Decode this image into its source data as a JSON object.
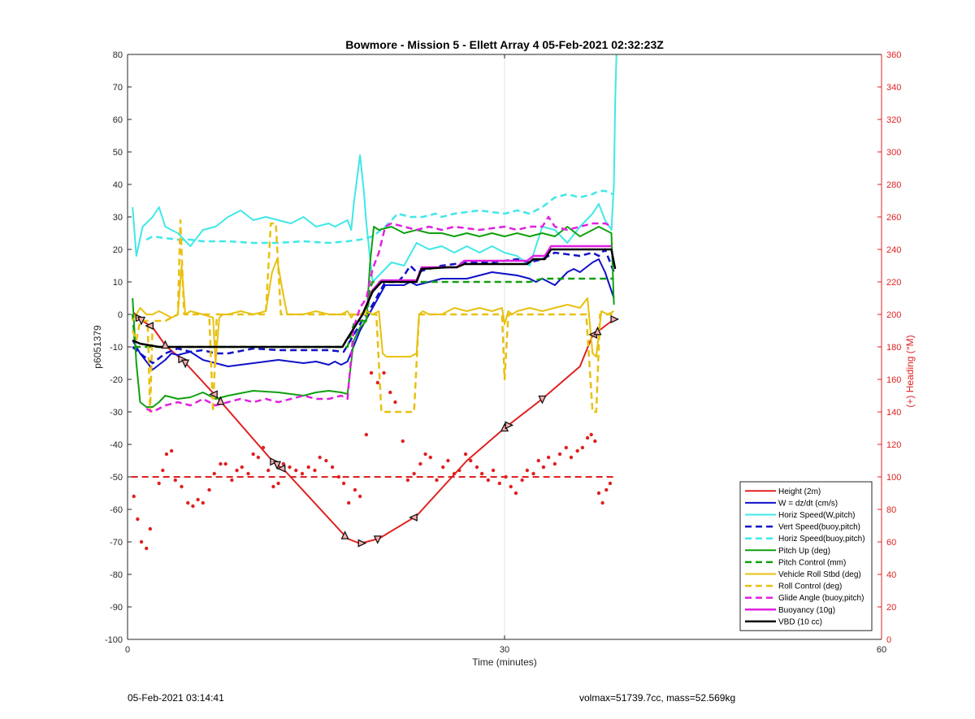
{
  "chart_data": {
    "type": "line",
    "title": "Bowmore - Mission 5 - Ellett Array 4 05-Feb-2021 02:32:23Z",
    "xlabel": "Time (minutes)",
    "ylabel": "p6051379",
    "y2label": "(+) Heading (°M)",
    "xlim": [
      0,
      60
    ],
    "ylim": [
      -100,
      80
    ],
    "y2lim": [
      0,
      360
    ],
    "xticks": [
      0,
      30,
      60
    ],
    "yticks": [
      -100,
      -90,
      -80,
      -70,
      -60,
      -50,
      -40,
      -30,
      -20,
      -10,
      0,
      10,
      20,
      30,
      40,
      50,
      60,
      70,
      80
    ],
    "y2ticks": [
      0,
      20,
      40,
      60,
      80,
      100,
      120,
      140,
      160,
      180,
      200,
      220,
      240,
      260,
      280,
      300,
      320,
      340,
      360
    ],
    "grid": "x-at-30-only",
    "legend_location": "bottom-right",
    "colors": {
      "red": "#e02020",
      "blue": "#1010c8",
      "cyan": "#40e8e8",
      "green": "#10a010",
      "yellow": "#e8c010",
      "magenta": "#e020e0",
      "black": "#000000",
      "heading": "#e02020"
    },
    "series": [
      {
        "name": "Height (2m)",
        "color": "red",
        "style": "solid",
        "width": 2,
        "markers": true,
        "x": [
          0.5,
          1.0,
          2.0,
          3.0,
          4.5,
          7.0,
          11.5,
          12.5,
          17.5,
          18.5,
          20.0,
          23.0,
          27.0,
          30.0,
          33.0,
          36.0,
          37.0,
          38.7
        ],
        "y": [
          0.5,
          -1.5,
          -4,
          -9.5,
          -14.5,
          -25,
          -45,
          -48,
          -69,
          -70.5,
          -69,
          -62,
          -45,
          -35,
          -26,
          -16,
          -6.5,
          -1.5
        ],
        "marker_x": [
          0.9,
          1.1,
          1.8,
          3.0,
          4.3,
          4.6,
          6.9,
          7.4,
          11.6,
          11.9,
          12.3,
          17.3,
          18.6,
          19.9,
          22.8,
          30.0,
          30.3,
          33.0,
          37.1,
          37.4,
          38.7
        ]
      },
      {
        "name": "W = dz/dt (cm/s)",
        "color": "blue",
        "style": "solid",
        "width": 2,
        "x": [
          0.4,
          1.0,
          2.0,
          3.0,
          3.5,
          4.0,
          5,
          6,
          8,
          10,
          12,
          14,
          15,
          16,
          16.5,
          17,
          17.5,
          18.5,
          19.5,
          20.5,
          22,
          22.5,
          23,
          25,
          27,
          28,
          29,
          31,
          32,
          32.5,
          33,
          34,
          35,
          35.5,
          36,
          37,
          37.5,
          38,
          38.7
        ],
        "y": [
          -8,
          -12,
          -17,
          -14,
          -12,
          -12.5,
          -11.5,
          -14,
          -16,
          -15,
          -14,
          -15,
          -14.5,
          -15.5,
          -14.5,
          -15.5,
          -14.5,
          -5,
          2,
          9,
          9,
          10,
          9,
          11,
          11,
          12,
          13,
          12,
          11,
          10,
          11,
          9,
          13,
          14,
          13,
          16,
          17,
          13,
          5
        ]
      },
      {
        "name": "Horiz Speed(W,pitch)",
        "color": "cyan",
        "style": "solid",
        "width": 2,
        "x": [
          0.4,
          0.7,
          1.2,
          2.0,
          2.5,
          3.0,
          3.5,
          4.0,
          4.5,
          5.0,
          6,
          7,
          8,
          9,
          10,
          11,
          12,
          13,
          14,
          15,
          16,
          16.5,
          17,
          17.5,
          17.8,
          18.0,
          18.5,
          18.8,
          19.0,
          19.5,
          20,
          21,
          22,
          23,
          24,
          25,
          26,
          27,
          28,
          29,
          30,
          31,
          32,
          33,
          34,
          35,
          36,
          37,
          37.5,
          38.0,
          38.5,
          38.7,
          38.8,
          38.9
        ],
        "y": [
          33,
          18,
          27,
          30,
          33,
          27,
          26,
          25,
          23,
          21,
          26,
          27,
          30,
          32,
          29,
          30,
          29,
          28,
          30,
          27,
          28,
          27,
          28,
          29,
          26,
          34,
          49,
          38,
          28,
          10,
          12,
          16,
          15,
          22,
          20,
          21,
          19,
          21,
          19,
          21,
          19,
          18,
          15,
          27,
          26,
          22,
          27,
          31,
          34,
          29,
          26,
          40,
          65,
          80
        ]
      },
      {
        "name": "Vert Speed(buoy,pitch)",
        "color": "blue",
        "style": "dashed",
        "width": 2.5,
        "x": [
          0.4,
          1.0,
          2.0,
          3.0,
          4,
          5,
          6,
          7,
          8,
          10,
          12,
          14,
          16,
          17.2,
          18.5,
          19.5,
          20.5,
          21.5,
          22,
          22.5,
          23,
          24,
          25,
          27,
          29,
          31,
          32,
          33,
          34,
          36,
          37,
          37.5,
          38.0,
          38.7
        ],
        "y": [
          -10,
          -12,
          -15,
          -12,
          -10.5,
          -11.5,
          -11,
          -12,
          -12,
          -10.5,
          -11,
          -11,
          -11,
          -11.5,
          -3,
          3,
          10,
          10,
          12,
          15,
          13,
          14,
          15,
          16,
          16,
          17,
          16,
          17,
          19,
          18,
          19,
          18,
          20,
          13
        ]
      },
      {
        "name": "Horiz Speed(buoy,pitch)",
        "color": "cyan",
        "style": "dashed",
        "width": 2.5,
        "x": [
          1.5,
          2.0,
          3.0,
          4.0,
          5,
          6,
          8,
          10,
          12,
          14,
          16,
          17.5,
          18.5,
          19.5,
          20.5,
          21.5,
          22.5,
          23.5,
          24.5,
          25,
          26,
          28,
          30,
          31,
          32,
          33,
          34,
          35,
          36,
          37,
          37.5,
          38.0,
          38.6
        ],
        "y": [
          23,
          24,
          23.5,
          23,
          23,
          22.5,
          22.5,
          22,
          22,
          22.5,
          22,
          22.5,
          23,
          24,
          27,
          31,
          30,
          30,
          31,
          30,
          31,
          32,
          31,
          32,
          31,
          33,
          36,
          37,
          36,
          37,
          38,
          38,
          37
        ]
      },
      {
        "name": "Pitch Up (deg)",
        "color": "green",
        "style": "solid",
        "width": 2,
        "x": [
          0.4,
          0.7,
          1.0,
          1.5,
          2.0,
          2.5,
          3.0,
          4,
          5,
          6,
          7,
          8,
          10,
          12,
          14,
          15,
          16,
          17,
          17.5,
          18.0,
          18.5,
          19.0,
          19.3,
          19.6,
          20,
          21,
          22,
          23,
          24,
          25,
          26,
          27,
          28,
          29,
          30,
          31,
          32,
          33,
          34,
          35,
          36,
          37,
          37.5,
          38.0,
          38.5,
          38.7
        ],
        "y": [
          5,
          -15,
          -27,
          -28.5,
          -28.5,
          -27,
          -25,
          -26,
          -25.5,
          -24,
          -26,
          -25,
          -23.5,
          -24,
          -25,
          -24,
          -23.5,
          -24,
          -24.5,
          -8,
          -4,
          -2,
          16,
          27,
          26,
          27,
          25,
          26,
          25,
          25,
          24,
          25,
          24,
          25,
          24,
          25,
          24,
          25,
          24,
          27,
          24,
          26,
          27,
          26,
          25,
          3
        ]
      },
      {
        "name": "Pitch Control (mm)",
        "color": "green",
        "style": "dashed",
        "width": 2.5,
        "x": [
          0.4,
          0.6,
          1.0,
          3.0,
          6,
          9,
          12,
          15,
          17.5,
          18.0,
          18.5,
          19.0,
          19.3,
          19.5,
          20,
          23,
          26,
          30,
          32,
          33,
          35,
          37,
          38.7
        ],
        "y": [
          0,
          -10,
          -10,
          -10,
          -10,
          -10,
          -10,
          -10,
          -10,
          -3,
          -2,
          -2,
          8,
          10,
          10,
          10,
          10,
          10,
          10,
          11,
          11,
          11,
          11
        ]
      },
      {
        "name": "Vehicle Roll Stbd (deg)",
        "color": "yellow",
        "style": "solid",
        "width": 2,
        "x": [
          0.4,
          1.0,
          1.5,
          2.0,
          2.5,
          3.0,
          3.5,
          4.0,
          4.3,
          4.6,
          5,
          6,
          6.8,
          7.0,
          7.3,
          7.6,
          8,
          9,
          10,
          11,
          11.5,
          11.9,
          12.3,
          12.7,
          13,
          14,
          15,
          16,
          17,
          17.5,
          17.8,
          18.0,
          18.5,
          19.0,
          19.5,
          20,
          20.3,
          20.6,
          21,
          22,
          22.5,
          23.0,
          23.2,
          23.5,
          24,
          25,
          26,
          27,
          28,
          29,
          29.8,
          30.0,
          30.3,
          30.6,
          31,
          32,
          33,
          34,
          35,
          36,
          36.6,
          37.0,
          37.3,
          37.7,
          38.2,
          38.7
        ],
        "y": [
          -2,
          2,
          0,
          0,
          1,
          0,
          -1,
          0,
          15,
          0,
          1,
          0,
          -1,
          -15,
          -1,
          0,
          0,
          1,
          0,
          1,
          13,
          17,
          8,
          0,
          0,
          0,
          1,
          0,
          0,
          1,
          -1,
          0,
          0,
          1,
          0,
          1,
          -12,
          -13,
          -13,
          -13,
          -13,
          -12,
          0,
          1,
          0,
          0,
          2,
          1,
          2,
          1,
          2,
          -3,
          1,
          0,
          1,
          2,
          1,
          2,
          3,
          2,
          5,
          -12,
          -13,
          1,
          0,
          1
        ]
      },
      {
        "name": "Roll Control (deg)",
        "color": "yellow",
        "style": "dashed",
        "width": 2.5,
        "x": [
          0.4,
          0.7,
          1.0,
          1.6,
          1.8,
          2.0,
          3.0,
          4.0,
          4.2,
          4.5,
          4.8,
          5,
          6.5,
          6.8,
          7.1,
          7.4,
          8,
          11,
          11.4,
          11.8,
          12.2,
          12.6,
          13,
          17,
          18.5,
          19.8,
          20.2,
          20.5,
          21.5,
          22.5,
          22.8,
          23.2,
          23.5,
          26,
          29.8,
          30.0,
          30.3,
          30.6,
          33,
          36.5,
          37.0,
          37.3,
          37.6,
          38.2,
          38.7
        ],
        "y": [
          -5,
          -8,
          -2,
          -2,
          -30,
          -2,
          -2,
          0,
          29,
          0,
          0,
          0,
          0,
          -30,
          0,
          0,
          0,
          0,
          28,
          28,
          0,
          0,
          0,
          0,
          0,
          0,
          -30,
          -30,
          -30,
          -30,
          -30,
          0,
          0,
          0,
          0,
          -20,
          0,
          0,
          0,
          0,
          -30,
          -30,
          0,
          0,
          0
        ]
      },
      {
        "name": "Glide Angle (buoy,pitch)",
        "color": "magenta",
        "style": "dashed",
        "width": 2.5,
        "x": [
          1.5,
          2.0,
          2.5,
          3.0,
          4,
          5,
          6,
          7,
          8,
          9,
          10,
          11,
          12,
          13,
          14,
          15,
          16,
          17,
          17.5,
          18.0,
          18.5,
          19.0,
          19.5,
          20.0,
          20.5,
          21,
          22,
          23,
          24,
          25,
          26,
          28,
          30,
          31,
          32,
          33,
          33.5,
          34,
          35,
          36,
          37,
          38.0,
          38.6
        ],
        "y": [
          -29,
          -30,
          -29,
          -28,
          -27,
          -28,
          -26,
          -28,
          -27,
          -26,
          -27,
          -26,
          -27,
          -26,
          -25,
          -26,
          -26,
          -25,
          -26,
          -4,
          2,
          5,
          14,
          19,
          27,
          28,
          27,
          26,
          27,
          26,
          27,
          26,
          27,
          26,
          27,
          27,
          30,
          27,
          26,
          27,
          28,
          28,
          27
        ]
      },
      {
        "name": "Buoyancy (10g)",
        "color": "magenta",
        "style": "solid",
        "width": 2.5,
        "x": [
          17.1,
          17.4,
          18.7,
          19.5,
          20.2,
          21.5,
          22.3,
          23.0,
          23.4,
          26.2,
          26.8,
          29.5,
          29.9,
          31.8,
          32.3,
          33.2,
          33.7,
          38.5
        ],
        "y": [
          -10,
          -8,
          0,
          7.5,
          10.5,
          10.5,
          10.5,
          10.5,
          14.5,
          14.5,
          16.5,
          16.5,
          16.5,
          16.5,
          18,
          18,
          21,
          21
        ]
      },
      {
        "name": "VBD (10 cc)",
        "color": "black",
        "style": "solid",
        "width": 2.5,
        "x": [
          0.4,
          1.0,
          2.5,
          17.1,
          17.4,
          18.7,
          19.5,
          20.2,
          22.5,
          23.0,
          23.4,
          25.5,
          26.2,
          26.8,
          29.5,
          29.9,
          31.8,
          32.3,
          33.2,
          33.7,
          38.5,
          38.8
        ],
        "y": [
          -8,
          -9,
          -10,
          -10,
          -8,
          0,
          7,
          10,
          10,
          10,
          14,
          14.5,
          14.5,
          15.5,
          15.5,
          15.5,
          15.5,
          17,
          17,
          20,
          20,
          14
        ]
      }
    ],
    "heading": {
      "axis": "right",
      "color": "heading",
      "target": 100,
      "target_x": [
        0.3,
        38.7
      ],
      "points_x": [
        0.5,
        0.8,
        1.1,
        1.5,
        1.8,
        2.5,
        2.8,
        3.1,
        3.5,
        3.8,
        4.3,
        4.8,
        5.2,
        5.6,
        6.0,
        6.5,
        6.9,
        7.4,
        7.8,
        8.3,
        8.7,
        9.1,
        9.6,
        10.0,
        10.4,
        10.8,
        11.2,
        11.6,
        12.0,
        12.4,
        12.9,
        13.4,
        13.9,
        14.4,
        14.9,
        15.3,
        15.8,
        16.3,
        16.8,
        17.2,
        17.6,
        18.1,
        18.5,
        19.0,
        19.4,
        19.9,
        20.4,
        20.9,
        21.3,
        21.9,
        22.3,
        22.8,
        23.3,
        23.7,
        24.1,
        24.6,
        25.1,
        25.5,
        26.0,
        26.4,
        26.9,
        27.3,
        27.8,
        28.2,
        28.7,
        29.1,
        29.6,
        30.1,
        30.5,
        30.9,
        31.4,
        31.8,
        32.3,
        32.7,
        33.1,
        33.5,
        34.0,
        34.4,
        34.9,
        35.3,
        35.8,
        36.2,
        36.6,
        36.9,
        37.2,
        37.5,
        37.8,
        38.1,
        38.4
      ],
      "points_y": [
        88,
        74,
        60,
        56,
        68,
        96,
        104,
        114,
        116,
        98,
        94,
        84,
        82,
        86,
        84,
        92,
        102,
        108,
        108,
        98,
        104,
        106,
        102,
        114,
        112,
        118,
        104,
        94,
        96,
        108,
        106,
        104,
        102,
        106,
        104,
        112,
        110,
        106,
        100,
        96,
        84,
        92,
        88,
        126,
        164,
        158,
        164,
        152,
        146,
        122,
        98,
        102,
        108,
        114,
        112,
        98,
        106,
        110,
        102,
        104,
        114,
        110,
        106,
        102,
        98,
        104,
        96,
        100,
        94,
        90,
        98,
        104,
        102,
        110,
        106,
        112,
        108,
        114,
        118,
        112,
        116,
        118,
        124,
        126,
        122,
        90,
        84,
        92,
        96
      ]
    },
    "legend": [
      "Height (2m)",
      "W = dz/dt (cm/s)",
      "Horiz Speed(W,pitch)",
      "Vert Speed(buoy,pitch)",
      "Horiz Speed(buoy,pitch)",
      "Pitch Up (deg)",
      "Pitch Control (mm)",
      "Vehicle Roll Stbd (deg)",
      "Roll Control (deg)",
      "Glide Angle (buoy,pitch)",
      "Buoyancy (10g)",
      "VBD (10 cc)"
    ]
  },
  "footer": {
    "left": "05-Feb-2021 03:14:41",
    "right": "volmax=51739.7cc, mass=52.569kg"
  }
}
